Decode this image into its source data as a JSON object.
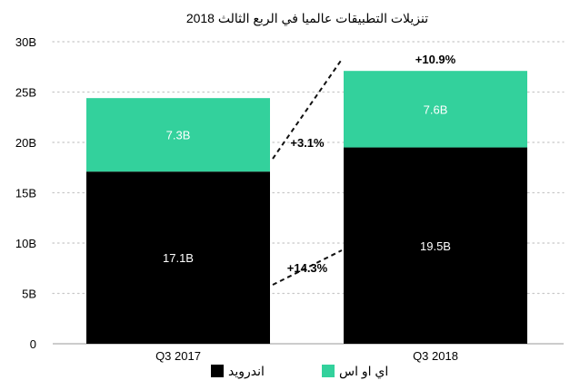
{
  "chart_data": {
    "type": "bar",
    "stacked": true,
    "title": "تنزيلات التطبيقات عالميا في الربع الثالث 2018",
    "xlabel": "",
    "ylabel": "",
    "categories": [
      "Q3 2017",
      "Q3 2018"
    ],
    "series": [
      {
        "name": "اندرويد",
        "values": [
          17.1,
          19.5
        ],
        "labels": [
          "17.1B",
          "19.5B"
        ],
        "color": "#000000"
      },
      {
        "name": "اي او اس",
        "values": [
          7.3,
          7.6
        ],
        "labels": [
          "7.3B",
          "7.6B"
        ],
        "color": "#33d19c"
      }
    ],
    "ylim": [
      0,
      30
    ],
    "yticks": [
      0,
      5,
      10,
      15,
      20,
      25,
      30
    ],
    "ytick_labels": [
      "0",
      "5B",
      "10B",
      "15B",
      "20B",
      "25B",
      "30B"
    ],
    "grid": true,
    "legend_position": "bottom",
    "annotations": {
      "total_growth": "+10.9%",
      "ios_growth": "+3.1%",
      "android_growth": "+14.3%"
    }
  }
}
